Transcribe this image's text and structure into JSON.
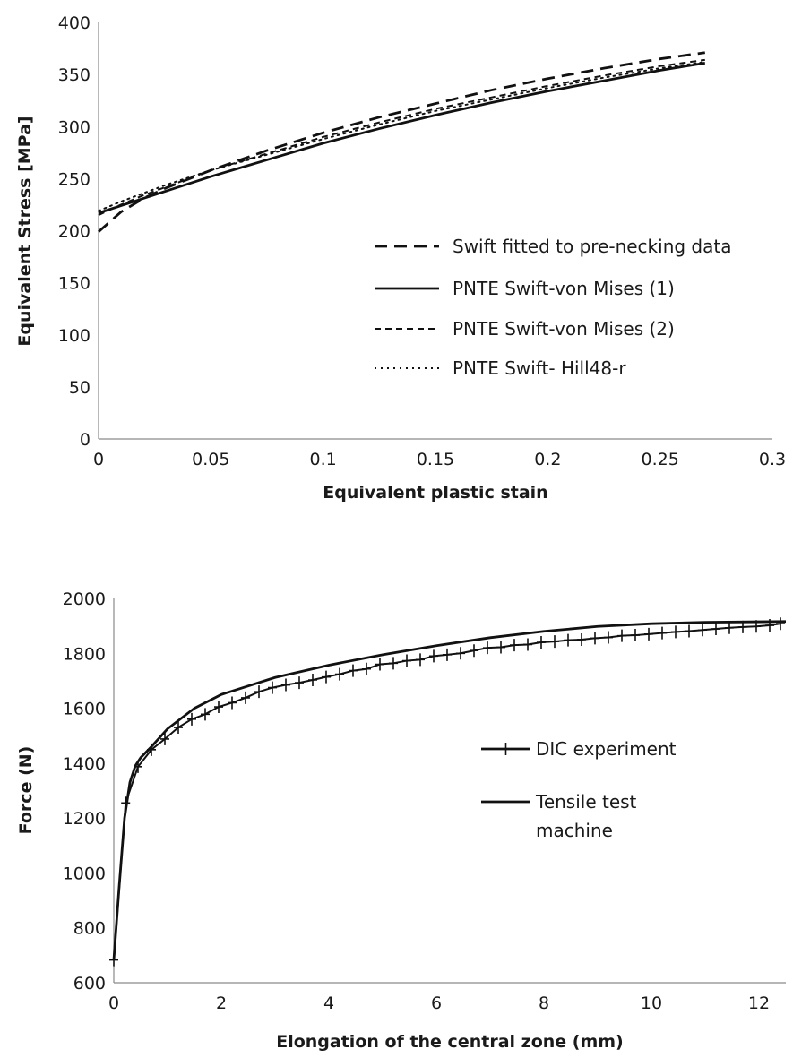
{
  "chart_data": [
    {
      "type": "line",
      "title": "",
      "xlabel": "Equivalent plastic stain",
      "ylabel": "Equivalent Stress [MPa]",
      "xlim": [
        0,
        0.3
      ],
      "ylim": [
        0,
        400
      ],
      "xticks": [
        0,
        0.05,
        0.1,
        0.15,
        0.2,
        0.25,
        0.3
      ],
      "yticks": [
        0,
        50,
        100,
        150,
        200,
        250,
        300,
        350,
        400
      ],
      "xtick_labels": [
        "0",
        "0.05",
        "0.1",
        "0.15",
        "0.2",
        "0.25",
        "0.3"
      ],
      "ytick_labels": [
        "0",
        "50",
        "100",
        "150",
        "200",
        "250",
        "300",
        "350",
        "400"
      ],
      "grid": false,
      "legend_position": "right",
      "series": [
        {
          "name": "Swift fitted to pre-necking data",
          "style": "long-dash",
          "x": [
            0,
            0.01,
            0.02,
            0.03,
            0.05,
            0.075,
            0.1,
            0.125,
            0.15,
            0.175,
            0.2,
            0.225,
            0.25,
            0.27
          ],
          "y": [
            199,
            218,
            231,
            241,
            258,
            277,
            294,
            309,
            322,
            335,
            346,
            356,
            365,
            371
          ]
        },
        {
          "name": "PNTE Swift-von Mises (1)",
          "style": "solid",
          "x": [
            0,
            0.01,
            0.02,
            0.03,
            0.05,
            0.075,
            0.1,
            0.125,
            0.15,
            0.175,
            0.2,
            0.225,
            0.25,
            0.27
          ],
          "y": [
            217,
            224,
            231,
            238,
            252,
            268,
            284,
            298,
            311,
            323,
            334,
            344,
            354,
            361
          ]
        },
        {
          "name": "PNTE Swift-von Mises (2)",
          "style": "short-dash",
          "x": [
            0,
            0.01,
            0.02,
            0.03,
            0.05,
            0.075,
            0.1,
            0.125,
            0.15,
            0.175,
            0.2,
            0.225,
            0.25,
            0.27
          ],
          "y": [
            215,
            225,
            234,
            242,
            258,
            274,
            290,
            304,
            317,
            328,
            339,
            349,
            358,
            364
          ]
        },
        {
          "name": "PNTE Swift- Hill48-r",
          "style": "dotted",
          "x": [
            0,
            0.01,
            0.02,
            0.03,
            0.05,
            0.075,
            0.1,
            0.125,
            0.15,
            0.175,
            0.2,
            0.225,
            0.25,
            0.27
          ],
          "y": [
            219,
            228,
            236,
            244,
            258,
            273,
            288,
            302,
            315,
            326,
            337,
            347,
            356,
            362
          ]
        }
      ]
    },
    {
      "type": "line",
      "title": "",
      "xlabel": "Elongation of the central zone (mm)",
      "ylabel": "Force (N)",
      "xlim": [
        0,
        12.5
      ],
      "ylim": [
        600,
        2000
      ],
      "xticks": [
        0,
        2,
        4,
        6,
        8,
        10,
        12
      ],
      "yticks": [
        600,
        800,
        1000,
        1200,
        1400,
        1600,
        1800,
        2000
      ],
      "xtick_labels": [
        "0",
        "2",
        "4",
        "6",
        "8",
        "10",
        "12"
      ],
      "ytick_labels": [
        "600",
        "800",
        "1000",
        "1200",
        "1400",
        "1600",
        "1800",
        "2000"
      ],
      "grid": false,
      "legend_position": "right",
      "series": [
        {
          "name": "DIC experiment",
          "style": "solid-plus-markers",
          "x": [
            0,
            0.22,
            0.45,
            0.7,
            0.95,
            1.2,
            1.45,
            1.7,
            1.95,
            2.2,
            2.45,
            2.7,
            2.95,
            3.2,
            3.45,
            3.7,
            3.95,
            4.2,
            4.45,
            4.7,
            4.95,
            5.2,
            5.45,
            5.7,
            5.95,
            6.2,
            6.45,
            6.7,
            6.95,
            7.2,
            7.45,
            7.7,
            7.95,
            8.2,
            8.45,
            8.7,
            8.95,
            9.2,
            9.45,
            9.7,
            9.95,
            10.2,
            10.45,
            10.7,
            10.95,
            11.2,
            11.45,
            11.7,
            11.95,
            12.2,
            12.4
          ],
          "y": [
            683,
            1255,
            1387,
            1449,
            1488,
            1530,
            1560,
            1578,
            1605,
            1620,
            1638,
            1660,
            1675,
            1685,
            1693,
            1703,
            1714,
            1724,
            1737,
            1743,
            1760,
            1764,
            1773,
            1777,
            1790,
            1795,
            1800,
            1810,
            1820,
            1822,
            1830,
            1832,
            1840,
            1843,
            1848,
            1850,
            1855,
            1858,
            1864,
            1866,
            1870,
            1874,
            1878,
            1881,
            1885,
            1889,
            1893,
            1896,
            1898,
            1902,
            1908
          ]
        },
        {
          "name": "Tensile test machine",
          "style": "solid",
          "x": [
            0,
            0.1,
            0.2,
            0.3,
            0.4,
            0.5,
            0.7,
            1.0,
            1.5,
            2.0,
            3.0,
            4.0,
            5.0,
            6.0,
            7.0,
            8.0,
            9.0,
            10.0,
            11.0,
            12.0,
            12.5
          ],
          "y": [
            683,
            950,
            1200,
            1330,
            1390,
            1420,
            1460,
            1525,
            1600,
            1650,
            1712,
            1757,
            1795,
            1828,
            1857,
            1880,
            1898,
            1908,
            1913,
            1915,
            1916
          ]
        }
      ]
    }
  ]
}
